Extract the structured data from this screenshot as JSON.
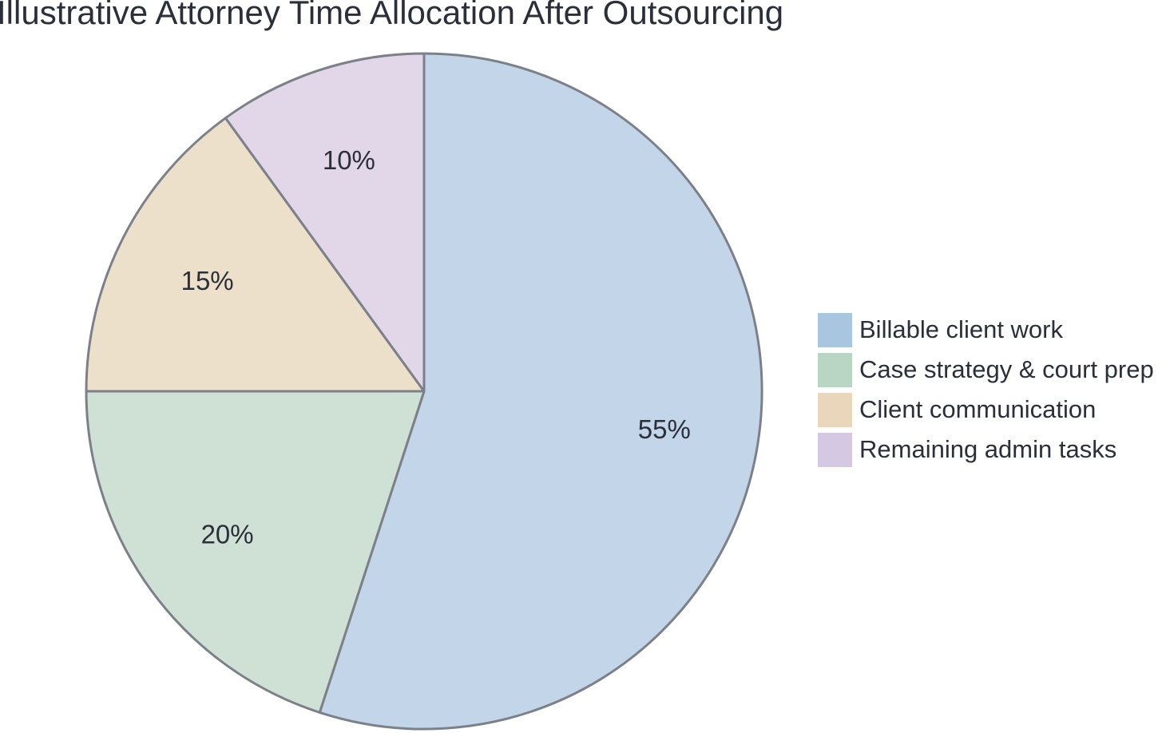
{
  "chart_data": {
    "type": "pie",
    "title": "Illustrative Attorney Time Allocation After Outsourcing",
    "categories": [
      "Billable client work",
      "Case strategy & court prep",
      "Client communication",
      "Remaining admin tasks"
    ],
    "values": [
      55,
      20,
      15,
      10
    ],
    "value_labels": [
      "55%",
      "20%",
      "15%",
      "10%"
    ],
    "slice_colors": [
      "#c3d5e8",
      "#cfe0d4",
      "#ede0cb",
      "#e2d7e8"
    ],
    "legend_colors": [
      "#a9c6e1",
      "#b8d6c3",
      "#ead6bb",
      "#d5c8e2"
    ],
    "slice_border_color": "#7c8089",
    "start_angle_deg": 0,
    "direction": "clockwise",
    "legend_position": "right"
  }
}
